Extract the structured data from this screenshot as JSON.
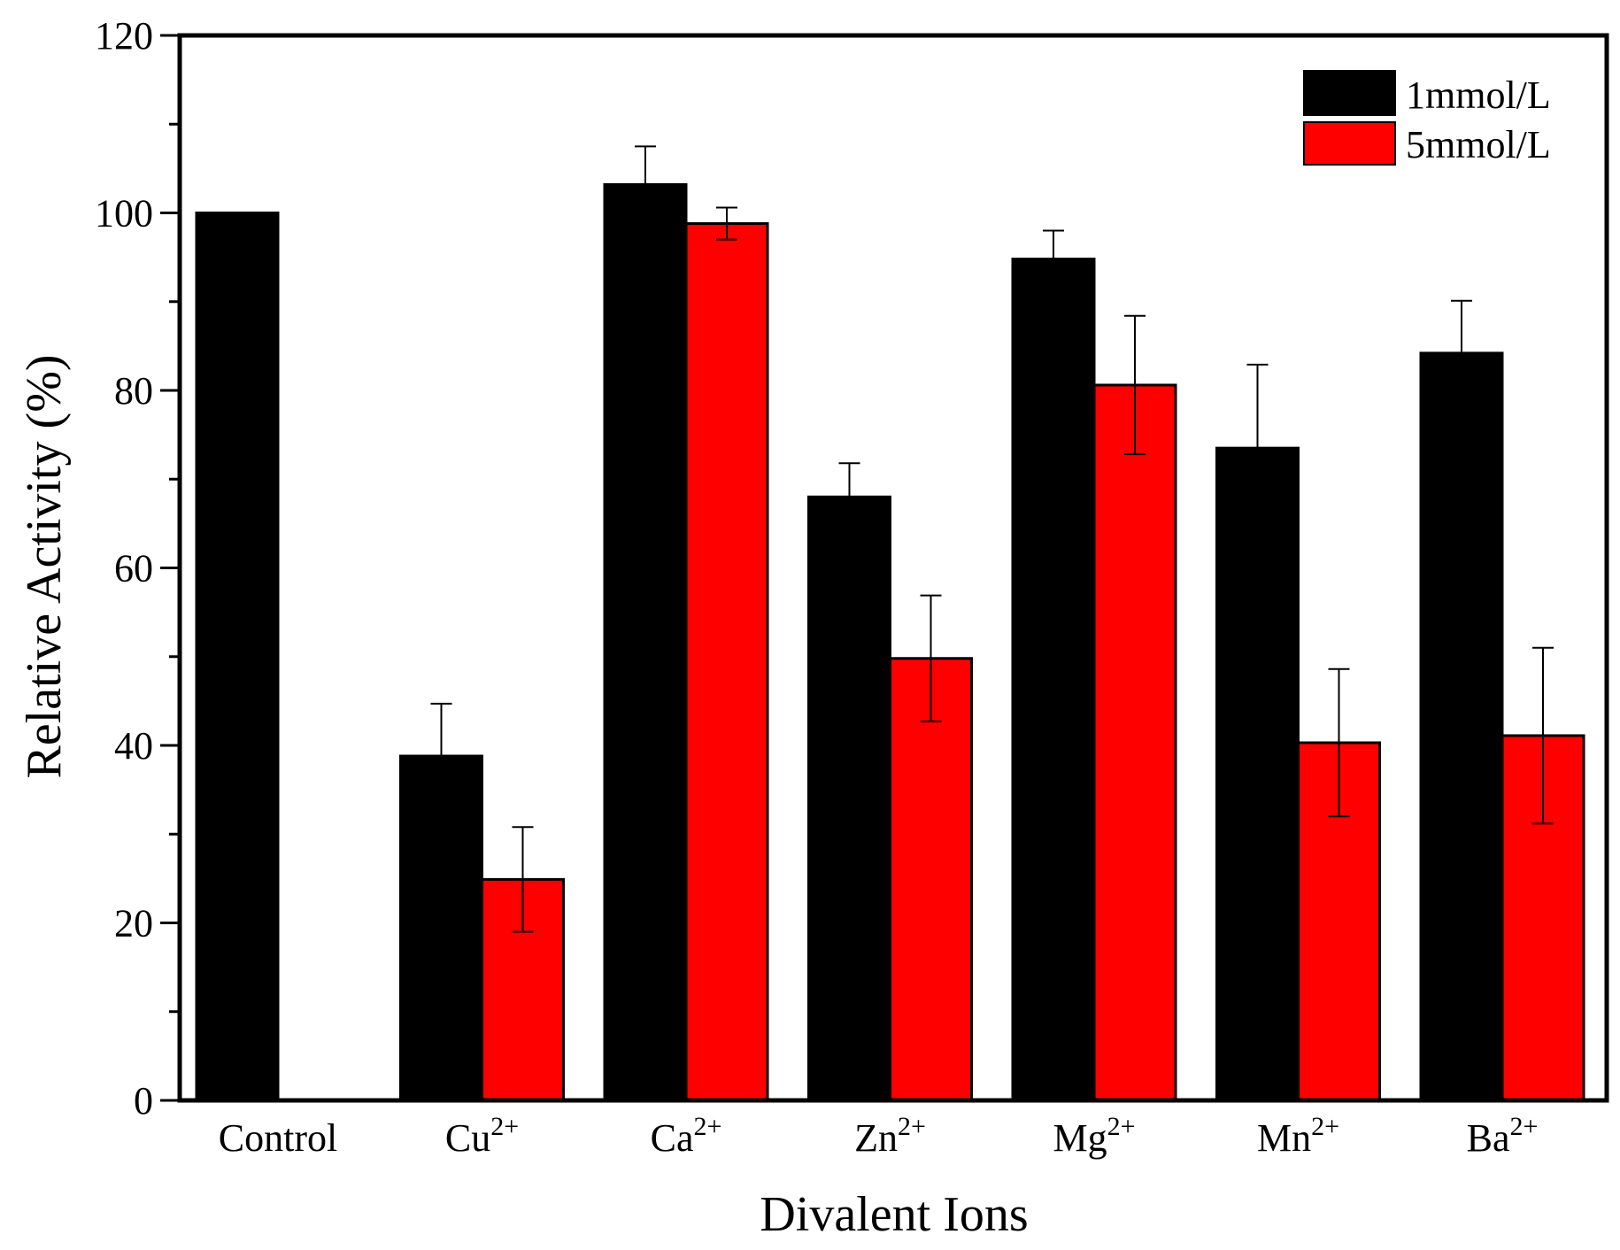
{
  "chart_data": {
    "type": "bar",
    "title": "",
    "xlabel": "Divalent Ions",
    "ylabel": "Relative Activity (%)",
    "ylim": [
      0,
      120
    ],
    "yticks": [
      0,
      20,
      40,
      60,
      80,
      100,
      120
    ],
    "yticks_labels": [
      "0",
      "20",
      "40",
      "60",
      "80",
      "100",
      "120"
    ],
    "categories": [
      {
        "base": "Control",
        "sup": ""
      },
      {
        "base": "Cu",
        "sup": "2+"
      },
      {
        "base": "Ca",
        "sup": "2+"
      },
      {
        "base": "Zn",
        "sup": "2+"
      },
      {
        "base": "Mg",
        "sup": "2+"
      },
      {
        "base": "Mn",
        "sup": "2+"
      },
      {
        "base": "Ba",
        "sup": "2+"
      }
    ],
    "series": [
      {
        "name": "1mmol/L",
        "color": "#000000",
        "values": [
          100,
          38.8,
          103.2,
          68.0,
          94.8,
          73.5,
          84.2
        ],
        "errors": [
          null,
          5.9,
          4.3,
          3.8,
          3.2,
          9.4,
          5.9
        ]
      },
      {
        "name": "5mmol/L",
        "color": "#ff0000",
        "values": [
          null,
          24.9,
          98.8,
          49.8,
          80.6,
          40.3,
          41.1
        ],
        "errors": [
          null,
          5.9,
          1.8,
          7.1,
          7.8,
          8.3,
          9.9
        ]
      }
    ],
    "grid": false,
    "legend_position": "top-right"
  }
}
